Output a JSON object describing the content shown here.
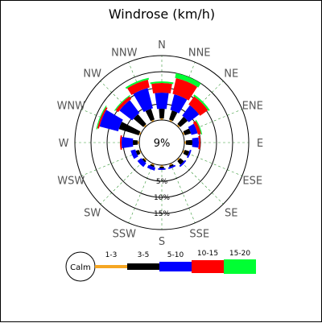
{
  "chart_data": {
    "type": "windrose",
    "title": "Windrose (km/h)",
    "unit": "km/h",
    "directions": [
      "N",
      "NNE",
      "NE",
      "ENE",
      "E",
      "ESE",
      "SE",
      "SSE",
      "S",
      "SSW",
      "SW",
      "WSW",
      "W",
      "WNW",
      "NW",
      "NNW"
    ],
    "ring_labels": [
      "5%",
      "10%",
      "15%"
    ],
    "ring_values": [
      5,
      10,
      15
    ],
    "max_percent": 20,
    "calm_label": "9%",
    "calm_text": "Calm",
    "bins": [
      {
        "label": "1-3",
        "color": "#f5a623"
      },
      {
        "label": "3-5",
        "color": "#000000"
      },
      {
        "label": "5-10",
        "color": "#0000ff"
      },
      {
        "label": "10-15",
        "color": "#ff0000"
      },
      {
        "label": "15-20",
        "color": "#00ff33"
      }
    ],
    "series": [
      {
        "direction": "N",
        "segments": [
          0.5,
          3.0,
          5.0,
          3.0,
          0.5
        ]
      },
      {
        "direction": "NNE",
        "segments": [
          0.5,
          3.0,
          5.0,
          5.0,
          1.5
        ]
      },
      {
        "direction": "NE",
        "segments": [
          0.5,
          3.0,
          4.0,
          3.0,
          0.5
        ]
      },
      {
        "direction": "ENE",
        "segments": [
          0.5,
          2.0,
          2.0,
          1.0,
          0.3
        ]
      },
      {
        "direction": "E",
        "segments": [
          0.5,
          2.0,
          2.0,
          0.5,
          0.0
        ]
      },
      {
        "direction": "ESE",
        "segments": [
          0.5,
          1.5,
          0.5,
          0.0,
          0.0
        ]
      },
      {
        "direction": "SE",
        "segments": [
          0.5,
          1.5,
          0.5,
          0.0,
          0.0
        ]
      },
      {
        "direction": "SSE",
        "segments": [
          0.5,
          0.5,
          0.5,
          0.0,
          0.0
        ]
      },
      {
        "direction": "S",
        "segments": [
          0.5,
          0.5,
          0.5,
          0.0,
          0.0
        ]
      },
      {
        "direction": "SSW",
        "segments": [
          0.5,
          0.5,
          1.0,
          0.0,
          0.0
        ]
      },
      {
        "direction": "SW",
        "segments": [
          0.5,
          0.5,
          1.5,
          0.0,
          0.0
        ]
      },
      {
        "direction": "WSW",
        "segments": [
          0.5,
          1.0,
          1.5,
          0.0,
          0.0
        ]
      },
      {
        "direction": "W",
        "segments": [
          0.5,
          1.5,
          3.5,
          0.5,
          0.0
        ]
      },
      {
        "direction": "WNW",
        "segments": [
          0.5,
          6.5,
          6.0,
          0.5,
          0.3
        ]
      },
      {
        "direction": "NW",
        "segments": [
          0.5,
          4.0,
          5.0,
          1.0,
          0.3
        ]
      },
      {
        "direction": "NNW",
        "segments": [
          0.5,
          3.5,
          6.5,
          2.5,
          0.5
        ]
      }
    ]
  }
}
